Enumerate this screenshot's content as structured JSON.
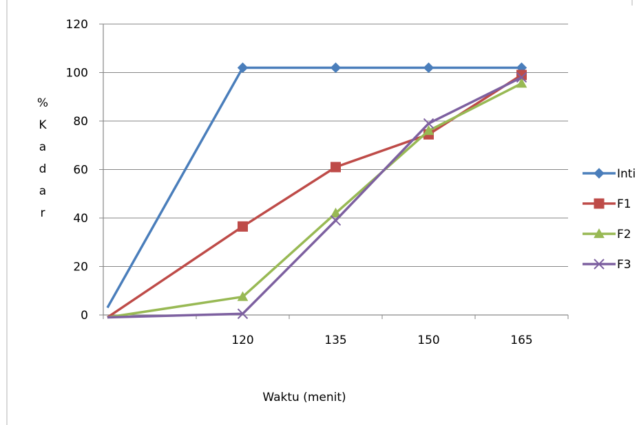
{
  "chart_data": {
    "type": "line",
    "title": "",
    "xlabel": "Waktu (menit)",
    "ylabel": "% Kadar",
    "ylabel_chars": [
      "%",
      "K",
      "a",
      "d",
      "a",
      "r"
    ],
    "categories": [
      "",
      "120",
      "135",
      "150",
      "165"
    ],
    "ylim": [
      0,
      120
    ],
    "yticks": [
      "0",
      "20",
      "40",
      "60",
      "80",
      "100",
      "120"
    ],
    "grid": true,
    "legend_position": "right",
    "series": [
      {
        "name": "Inti",
        "color": "#4a7ebb",
        "marker": "diamond",
        "values": [
          3,
          102,
          102,
          102,
          102
        ]
      },
      {
        "name": "F1",
        "color": "#be4b48",
        "marker": "square",
        "values": [
          -1,
          36.5,
          61,
          74.5,
          99
        ]
      },
      {
        "name": "F2",
        "color": "#98b954",
        "marker": "triangle",
        "values": [
          -1,
          7.5,
          42,
          76,
          95.5
        ]
      },
      {
        "name": "F3",
        "color": "#7d60a0",
        "marker": "x",
        "values": [
          -1,
          0.5,
          39,
          79,
          98
        ]
      }
    ]
  }
}
